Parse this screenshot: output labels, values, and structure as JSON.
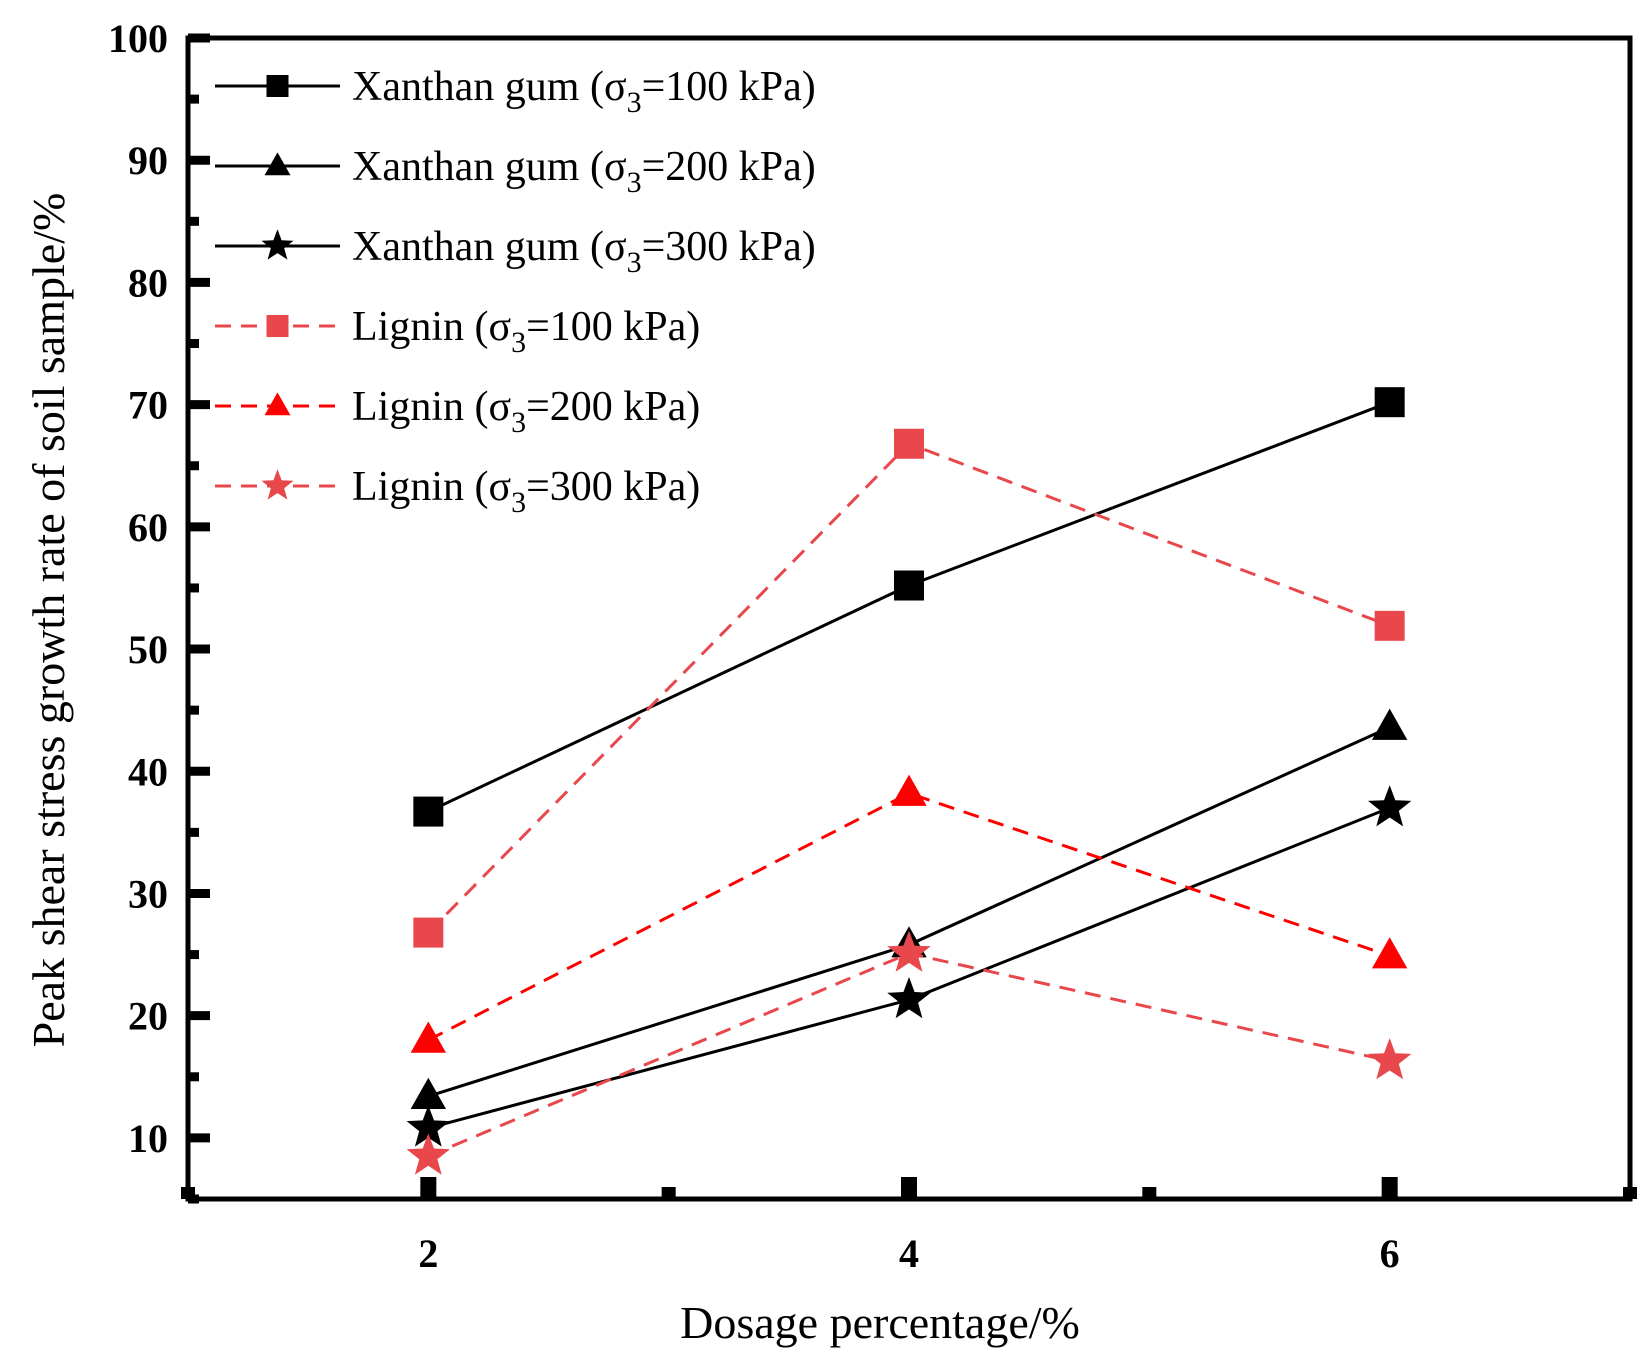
{
  "chart_data": {
    "type": "line",
    "title": "",
    "xlabel": "Dosage percentage/%",
    "ylabel": "Peak shear stress growth rate of soil sample/%",
    "x": [
      2,
      4,
      6
    ],
    "xlim": [
      1,
      7
    ],
    "ylim": [
      5,
      100
    ],
    "xticks": [
      "2",
      "4",
      "6"
    ],
    "yticks": [
      "10",
      "20",
      "30",
      "40",
      "50",
      "60",
      "70",
      "80",
      "90",
      "100"
    ],
    "legend_position": "top-left",
    "series": [
      {
        "name": "Xanthan gum (σ3=100 kPa)",
        "prefix": "Xanthan gum (σ",
        "sub": "3",
        "suffix": "=100 kPa)",
        "marker": "square",
        "color": "#000000",
        "dash": "solid",
        "values": [
          36.7,
          55.2,
          70.2
        ]
      },
      {
        "name": "Xanthan gum (σ3=200 kPa)",
        "prefix": "Xanthan gum (σ",
        "sub": "3",
        "suffix": "=200 kPa)",
        "marker": "triangle",
        "color": "#000000",
        "dash": "solid",
        "values": [
          13.4,
          25.8,
          43.6
        ]
      },
      {
        "name": "Xanthan gum (σ3=300 kPa)",
        "prefix": "Xanthan gum (σ",
        "sub": "3",
        "suffix": "=300 kPa)",
        "marker": "star",
        "color": "#000000",
        "dash": "solid",
        "values": [
          10.8,
          21.3,
          37.0
        ]
      },
      {
        "name": "Lignin (σ3=100 kPa)",
        "prefix": "Lignin (σ",
        "sub": "3",
        "suffix": "=100 kPa)",
        "marker": "square",
        "color": "#e8474c",
        "dash": "dashed",
        "values": [
          26.8,
          66.8,
          51.9
        ]
      },
      {
        "name": "Lignin (σ3=200 kPa)",
        "prefix": "Lignin (σ",
        "sub": "3",
        "suffix": "=200 kPa)",
        "marker": "triangle",
        "color": "#ff0000",
        "dash": "dashed",
        "values": [
          18.0,
          38.2,
          24.9
        ]
      },
      {
        "name": "Lignin (σ3=300 kPa)",
        "prefix": "Lignin (σ",
        "sub": "3",
        "suffix": "=300 kPa)",
        "marker": "star",
        "color": "#e8474c",
        "dash": "dashed",
        "values": [
          8.5,
          25.1,
          16.3
        ]
      }
    ]
  }
}
